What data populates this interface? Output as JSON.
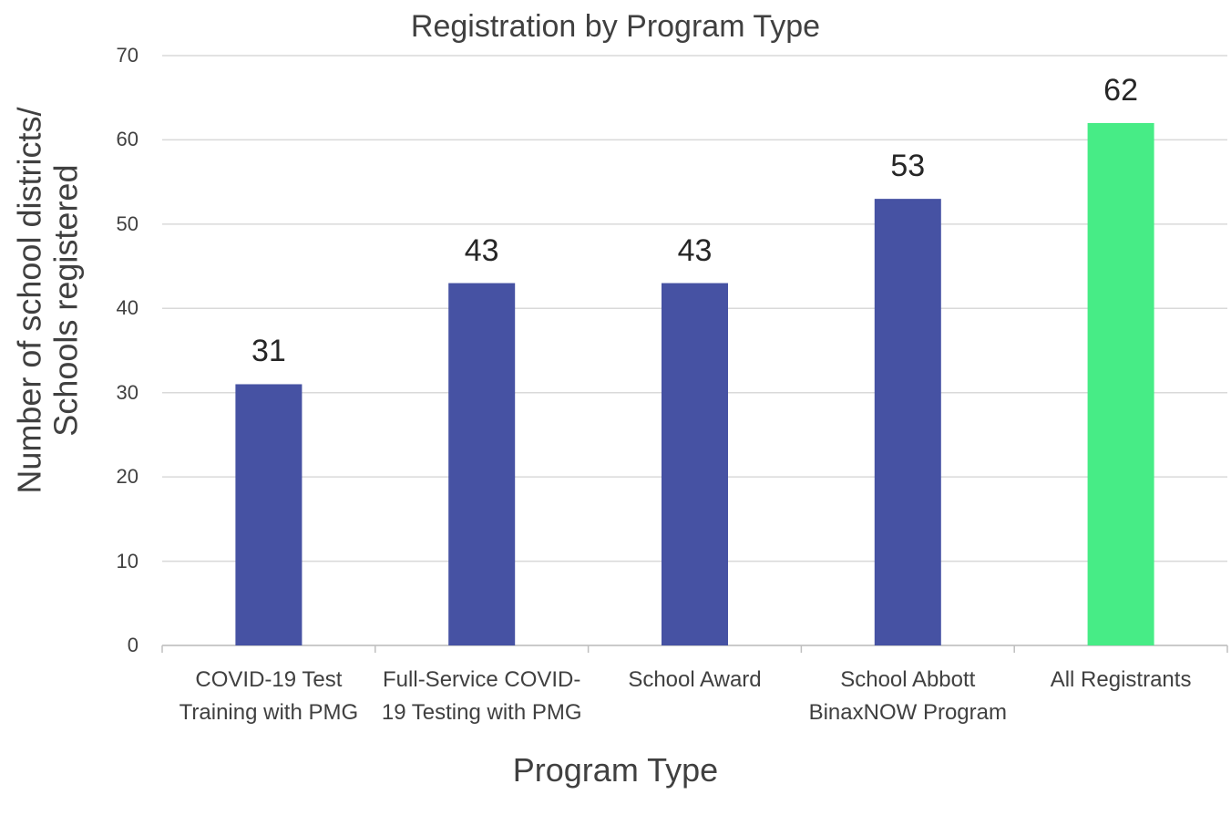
{
  "chart_data": {
    "type": "bar",
    "title": "Registration by Program Type",
    "x_label": "Program Type",
    "y_label": "Number of school districts/ Schools registered",
    "categories": [
      "COVID-19 Test Training with PMG",
      "Full-Service COVID-19 Testing with PMG",
      "School Award",
      "School Abbott BinaxNOW Program",
      "All Registrants"
    ],
    "values": [
      31,
      43,
      43,
      53,
      62
    ],
    "colors": [
      "#4652a3",
      "#4652a3",
      "#4652a3",
      "#4652a3",
      "#47ec86"
    ],
    "ylim": [
      0,
      70
    ],
    "yticks": [
      0,
      10,
      20,
      30,
      40,
      50,
      60,
      70
    ],
    "grid": true
  }
}
